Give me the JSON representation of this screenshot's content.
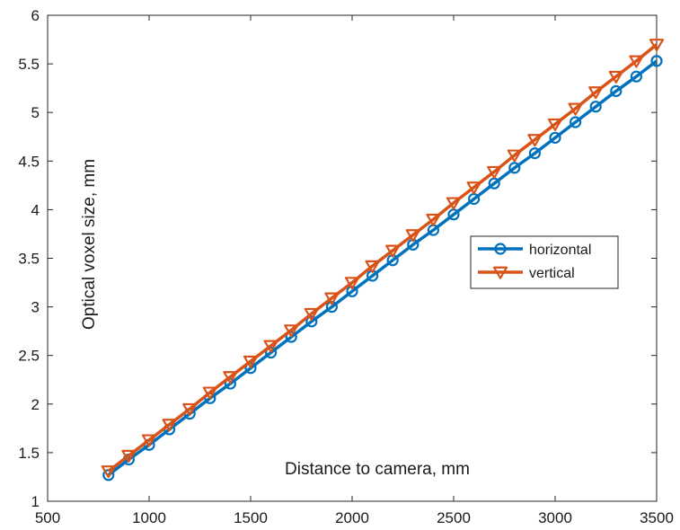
{
  "chart_data": {
    "type": "line",
    "xlabel": "Distance to camera, mm",
    "ylabel": "Optical voxel size, mm",
    "xlim": [
      500,
      3500
    ],
    "ylim": [
      1,
      6
    ],
    "x_ticks": [
      500,
      1000,
      1500,
      2000,
      2500,
      3000,
      3500
    ],
    "y_ticks": [
      1,
      1.5,
      2,
      2.5,
      3,
      3.5,
      4,
      4.5,
      5,
      5.5,
      6
    ],
    "y_tick_labels": [
      "1",
      "1.5",
      "2",
      "2.5",
      "3",
      "3.5",
      "4",
      "4.5",
      "5",
      "5.5",
      "6"
    ],
    "x_tick_labels": [
      "500",
      "1000",
      "1500",
      "2000",
      "2500",
      "3000",
      "3500"
    ],
    "grid": false,
    "legend_position": "right-middle",
    "x": [
      800,
      900,
      1000,
      1100,
      1200,
      1300,
      1400,
      1500,
      1600,
      1700,
      1800,
      1900,
      2000,
      2100,
      2200,
      2300,
      2400,
      2500,
      2600,
      2700,
      2800,
      2900,
      3000,
      3100,
      3200,
      3300,
      3400,
      3500
    ],
    "series": [
      {
        "name": "horizontal",
        "color": "#0072BD",
        "marker": "circle",
        "values": [
          1.27,
          1.43,
          1.58,
          1.74,
          1.9,
          2.06,
          2.21,
          2.37,
          2.53,
          2.69,
          2.85,
          3.0,
          3.16,
          3.32,
          3.48,
          3.64,
          3.79,
          3.95,
          4.11,
          4.27,
          4.43,
          4.58,
          4.74,
          4.9,
          5.06,
          5.22,
          5.37,
          5.53
        ]
      },
      {
        "name": "vertical",
        "color": "#D95319",
        "marker": "triangle-down",
        "values": [
          1.31,
          1.47,
          1.63,
          1.79,
          1.95,
          2.12,
          2.28,
          2.44,
          2.6,
          2.76,
          2.93,
          3.09,
          3.25,
          3.42,
          3.58,
          3.74,
          3.9,
          4.07,
          4.23,
          4.39,
          4.56,
          4.72,
          4.88,
          5.04,
          5.21,
          5.37,
          5.53,
          5.7
        ]
      }
    ]
  }
}
